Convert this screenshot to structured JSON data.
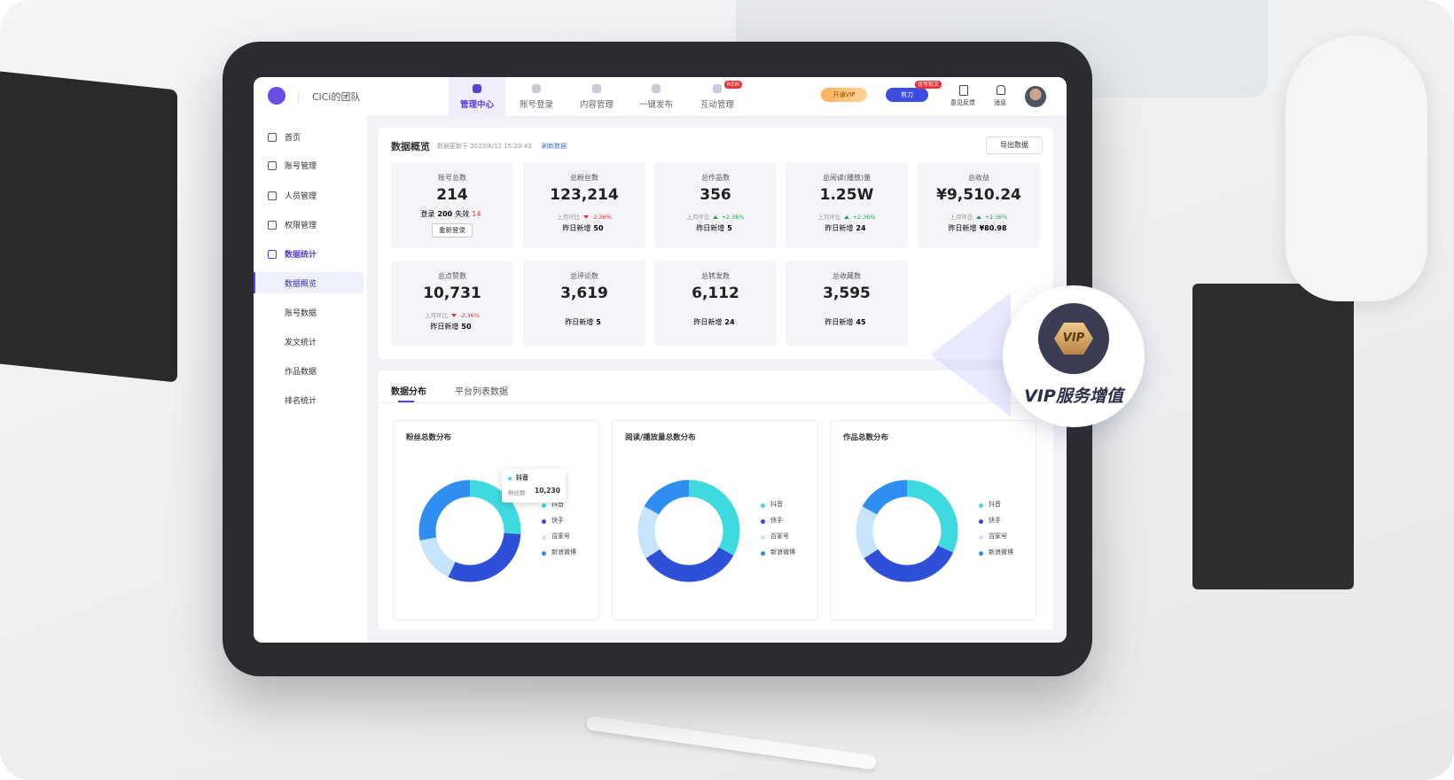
{
  "header": {
    "team": "CiCi的团队",
    "nav": [
      "管理中心",
      "账号登录",
      "内容管理",
      "一键发布",
      "互动管理"
    ],
    "nav_badge": "NEW",
    "vip_button": "开通VIP",
    "tool_button": "剪刀",
    "tool_badge": "优写软文",
    "feedback": "意见反馈",
    "messages": "消息"
  },
  "sidebar": {
    "items": [
      "首页",
      "账号管理",
      "人员管理",
      "权限管理",
      "数据统计"
    ],
    "sub_items": [
      "数据概览",
      "账号数据",
      "发文统计",
      "作品数据",
      "排名统计"
    ]
  },
  "overview": {
    "title": "数据概览",
    "updated": "数据更新于 2023/8/12 15:23:43",
    "refresh": "刷新数据",
    "export": "导出数据",
    "cards": [
      {
        "label": "账号总数",
        "value": "214",
        "login_label": "登录",
        "login": "200",
        "failed_label": "失效",
        "failed": "14",
        "action": "重新登录"
      },
      {
        "label": "总粉丝数",
        "value": "123,214",
        "change_label": "上月环比",
        "change": "-2.36%",
        "trend": "down",
        "new_label": "昨日新增",
        "new": "50"
      },
      {
        "label": "总作品数",
        "value": "356",
        "change_label": "上月环比",
        "change": "+2.36%",
        "trend": "up",
        "new_label": "昨日新增",
        "new": "5"
      },
      {
        "label": "总阅读(播放)量",
        "value": "1.25W",
        "change_label": "上月环比",
        "change": "+2.36%",
        "trend": "up",
        "new_label": "昨日新增",
        "new": "24"
      },
      {
        "label": "总收益",
        "value": "¥9,510.24",
        "change_label": "上月环比",
        "change": "+2.36%",
        "trend": "up",
        "new_label": "昨日新增",
        "new": "¥80.98"
      },
      {
        "label": "总点赞数",
        "value": "10,731",
        "change_label": "上月环比",
        "change": "-2.36%",
        "trend": "down",
        "new_label": "昨日新增",
        "new": "50"
      },
      {
        "label": "总评论数",
        "value": "3,619",
        "new_label": "昨日新增",
        "new": "5"
      },
      {
        "label": "总转发数",
        "value": "6,112",
        "new_label": "昨日新增",
        "new": "24"
      },
      {
        "label": "总收藏数",
        "value": "3,595",
        "new_label": "昨日新增",
        "new": "45"
      }
    ]
  },
  "distribution": {
    "tabs": [
      "数据分布",
      "平台列表数据"
    ],
    "charts": [
      {
        "type": "donut",
        "title": "粉丝总数分布",
        "legend": [
          "抖音",
          "快手",
          "百家号",
          "新浪微博"
        ],
        "colors": [
          "#3fd9e0",
          "#2e4fd8",
          "#c6e4fb",
          "#2f8ef0"
        ],
        "values": [
          26,
          31,
          15,
          28
        ],
        "tooltip": {
          "name": "抖音",
          "label": "粉丝数:",
          "value": "10,230"
        }
      },
      {
        "type": "donut",
        "title": "阅读/播放量总数分布",
        "legend": [
          "抖音",
          "快手",
          "百家号",
          "新浪微博"
        ],
        "colors": [
          "#3fd9e0",
          "#2e4fd8",
          "#c6e4fb",
          "#2f8ef0"
        ],
        "values": [
          33,
          33,
          17,
          17
        ]
      },
      {
        "type": "donut",
        "title": "作品总数分布",
        "legend": [
          "抖音",
          "快手",
          "百家号",
          "新浪微博"
        ],
        "colors": [
          "#3fd9e0",
          "#2e4fd8",
          "#c6e4fb",
          "#2f8ef0"
        ],
        "values": [
          32,
          34,
          17,
          17
        ]
      }
    ]
  },
  "vip": {
    "badge": "VIP",
    "text": "VIP服务增值"
  }
}
